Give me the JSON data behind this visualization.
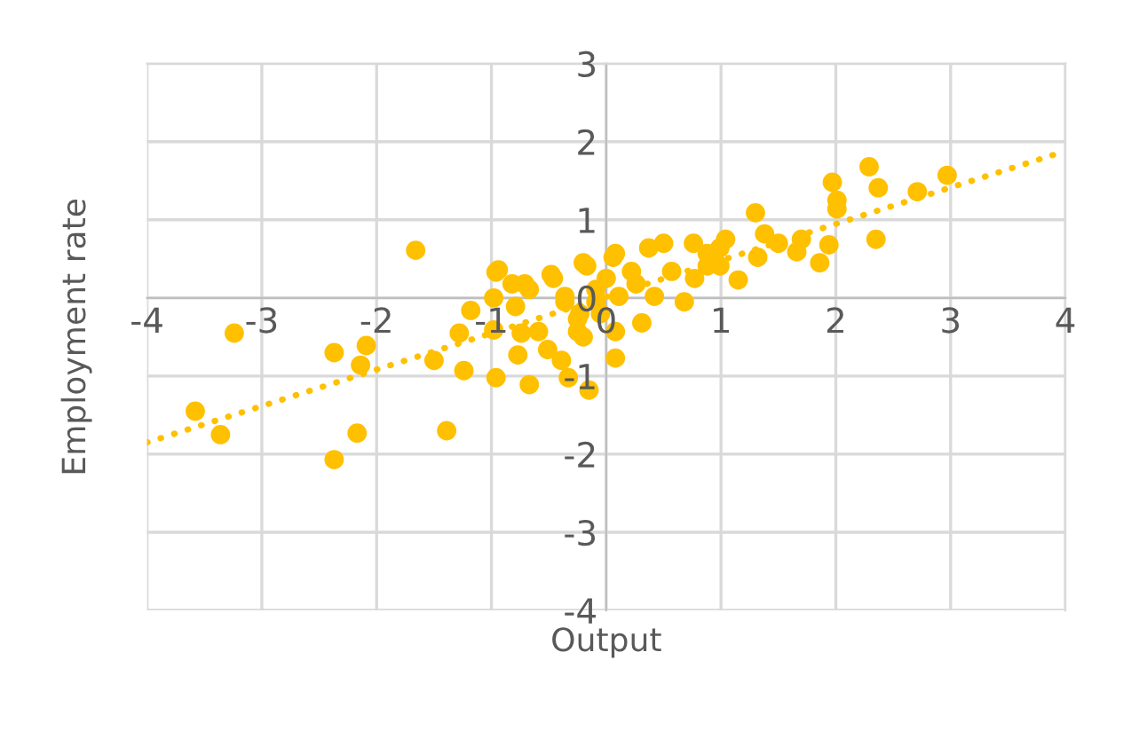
{
  "chart_data": {
    "type": "scatter",
    "xlabel": "Output",
    "ylabel": "Employment rate",
    "xlim": [
      -4,
      4
    ],
    "ylim": [
      -4,
      3
    ],
    "xticks": [
      -4,
      -3,
      -2,
      -1,
      0,
      1,
      2,
      3,
      4
    ],
    "yticks": [
      -4,
      -3,
      -2,
      -1,
      0,
      1,
      2,
      3
    ],
    "grid": true,
    "marker": "circle",
    "series": [
      {
        "color": "#ffc000",
        "x": [
          -3.58,
          -3.36,
          -3.24,
          -2.37,
          -2.37,
          -2.09,
          -2.14,
          -2.17,
          -1.66,
          -1.5,
          -1.39,
          -1.18,
          -1.28,
          -1.24,
          -0.98,
          -0.96,
          -0.96,
          -0.98,
          -0.79,
          -0.82,
          -0.67,
          -0.74,
          -0.77,
          -0.59,
          -0.67,
          -0.51,
          -0.39,
          -0.33,
          -0.15,
          -0.46,
          -0.36,
          -0.25,
          -0.17,
          0.08,
          0.06,
          -0.23,
          -0.05,
          -0.09,
          -0.94,
          -0.71,
          -0.48,
          -0.2,
          0.08,
          0.26,
          0.37,
          0.5,
          0.76,
          0.88,
          1.04,
          1.15,
          0.68,
          0.31,
          0.08,
          -0.2,
          -0.09,
          0.11,
          0.0,
          0.22,
          0.57,
          0.42,
          0.77,
          0.99,
          -0.36,
          -0.25,
          0.88,
          1.3,
          1.38,
          1.32,
          1.5,
          1.66,
          1.7,
          1.86,
          1.94,
          1.97,
          2.01,
          2.01,
          2.29,
          2.37,
          2.35,
          2.71,
          2.97,
          0.99
        ],
        "values": [
          -1.45,
          -1.75,
          -0.45,
          -2.07,
          -0.7,
          -0.61,
          -0.86,
          -1.73,
          0.61,
          -0.8,
          -1.7,
          -0.16,
          -0.45,
          -0.93,
          -0.41,
          -1.02,
          0.33,
          0.0,
          -0.11,
          0.18,
          0.11,
          -0.45,
          -0.73,
          -0.43,
          -1.11,
          -0.66,
          -0.8,
          -1.02,
          -1.18,
          0.25,
          0.02,
          -0.43,
          0.41,
          -0.77,
          0.52,
          -0.2,
          -0.2,
          0.11,
          0.36,
          0.18,
          0.3,
          0.45,
          0.57,
          0.18,
          0.64,
          0.7,
          0.7,
          0.57,
          0.75,
          0.23,
          -0.05,
          -0.32,
          -0.43,
          -0.5,
          -0.05,
          0.02,
          0.25,
          0.34,
          0.34,
          0.02,
          0.25,
          0.41,
          -0.05,
          -0.27,
          0.41,
          1.09,
          0.82,
          0.52,
          0.7,
          0.59,
          0.75,
          0.45,
          0.68,
          1.48,
          1.25,
          1.14,
          1.68,
          1.41,
          0.75,
          1.36,
          1.57,
          0.64
        ]
      },
      {
        "type": "line",
        "color": "#ffc000",
        "line_style": "dotted",
        "marker": "none",
        "x": [
          -4,
          4
        ],
        "values": [
          -1.85,
          1.88
        ]
      }
    ]
  }
}
